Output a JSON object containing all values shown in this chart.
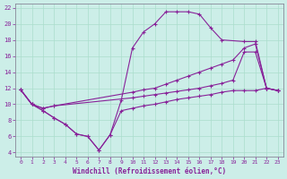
{
  "xlabel": "Windchill (Refroidissement éolien,°C)",
  "bg_color": "#cceee8",
  "grid_color": "#aaddcc",
  "line_color": "#882299",
  "xlim": [
    -0.5,
    23.5
  ],
  "ylim": [
    3.5,
    22.5
  ],
  "yticks": [
    4,
    6,
    8,
    10,
    12,
    14,
    16,
    18,
    20,
    22
  ],
  "xticks": [
    0,
    1,
    2,
    3,
    4,
    5,
    6,
    7,
    8,
    9,
    10,
    11,
    12,
    13,
    14,
    15,
    16,
    17,
    18,
    19,
    20,
    21,
    22,
    23
  ],
  "line1_x": [
    0,
    1,
    2,
    3,
    4,
    5,
    6,
    7,
    8,
    9,
    10,
    11,
    12,
    13,
    14,
    15,
    16,
    17,
    18,
    20,
    21,
    22,
    23
  ],
  "line1_y": [
    11.8,
    10.0,
    9.2,
    8.3,
    7.5,
    6.3,
    6.0,
    4.3,
    6.2,
    10.5,
    17.0,
    19.0,
    20.0,
    21.5,
    21.5,
    21.5,
    21.2,
    19.5,
    18.0,
    17.8,
    17.8,
    12.0,
    11.7
  ],
  "line2_x": [
    0,
    1,
    2,
    3,
    10,
    11,
    12,
    13,
    14,
    15,
    16,
    17,
    18,
    19,
    20,
    21,
    22,
    23
  ],
  "line2_y": [
    11.8,
    10.0,
    9.5,
    9.8,
    11.5,
    11.8,
    12.0,
    12.5,
    13.0,
    13.5,
    14.0,
    14.5,
    15.0,
    15.5,
    17.0,
    17.5,
    12.0,
    11.7
  ],
  "line3_x": [
    0,
    1,
    2,
    3,
    10,
    11,
    12,
    13,
    14,
    15,
    16,
    17,
    18,
    19,
    20,
    21,
    22,
    23
  ],
  "line3_y": [
    11.8,
    10.0,
    9.5,
    9.8,
    10.8,
    11.0,
    11.2,
    11.4,
    11.6,
    11.8,
    12.0,
    12.3,
    12.6,
    13.0,
    16.5,
    16.5,
    12.0,
    11.7
  ],
  "line4_x": [
    0,
    1,
    2,
    3,
    4,
    5,
    6,
    7,
    8,
    9,
    10,
    11,
    12,
    13,
    14,
    15,
    16,
    17,
    18,
    19,
    20,
    21,
    22,
    23
  ],
  "line4_y": [
    11.8,
    10.0,
    9.2,
    8.3,
    7.5,
    6.3,
    6.0,
    4.3,
    6.2,
    9.2,
    9.5,
    9.8,
    10.0,
    10.3,
    10.6,
    10.8,
    11.0,
    11.2,
    11.5,
    11.7,
    11.7,
    11.7,
    12.0,
    11.7
  ]
}
